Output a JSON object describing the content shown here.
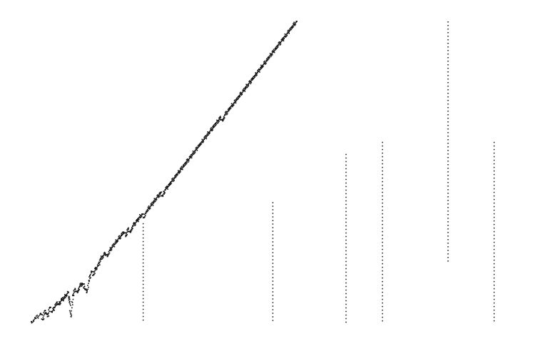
{
  "chart_data": {
    "type": "scatter",
    "title": "",
    "xlabel": "",
    "ylabel": "",
    "grid": false,
    "legend": "none",
    "axes_visible": false,
    "xlim": [
      0,
      100
    ],
    "ylim": [
      0,
      100
    ],
    "marker_color": "#111111",
    "series": [
      {
        "values": [
          [
            0,
            0.3
          ],
          [
            1,
            1.5
          ],
          [
            2,
            3
          ],
          [
            2.5,
            1
          ],
          [
            3,
            4
          ],
          [
            3.5,
            2
          ],
          [
            4,
            5
          ],
          [
            4.5,
            3.5
          ],
          [
            5,
            5
          ],
          [
            5.5,
            6.5
          ],
          [
            6,
            6
          ],
          [
            6.5,
            7.5
          ],
          [
            7,
            8
          ],
          [
            7.5,
            9
          ],
          [
            8,
            10
          ],
          [
            8.3,
            7
          ],
          [
            8.6,
            2
          ],
          [
            9,
            9
          ],
          [
            9.5,
            11
          ],
          [
            10,
            10
          ],
          [
            10.5,
            12
          ],
          [
            11,
            13
          ],
          [
            11.5,
            12
          ],
          [
            12,
            10
          ],
          [
            12.5,
            14
          ],
          [
            13,
            17
          ],
          [
            13.5,
            16
          ],
          [
            14,
            18
          ],
          [
            14.5,
            19
          ],
          [
            15,
            21
          ],
          [
            15.5,
            22
          ],
          [
            16,
            23
          ],
          [
            16.5,
            22
          ],
          [
            17,
            24
          ],
          [
            17.5,
            25
          ],
          [
            18,
            26
          ],
          [
            18.5,
            27
          ],
          [
            19,
            28
          ],
          [
            19.5,
            29
          ],
          [
            20,
            30
          ],
          [
            20.5,
            29
          ],
          [
            21,
            31
          ],
          [
            21.5,
            30
          ],
          [
            22,
            32
          ],
          [
            22.5,
            33
          ],
          [
            23,
            34
          ],
          [
            23.5,
            35
          ],
          [
            24,
            36
          ],
          [
            24.5,
            35
          ],
          [
            25,
            37
          ],
          [
            25.5,
            38
          ],
          [
            26,
            39
          ],
          [
            26.5,
            40
          ],
          [
            27,
            41
          ],
          [
            27.5,
            42
          ],
          [
            28,
            43
          ],
          [
            28.5,
            42
          ],
          [
            29,
            44
          ],
          [
            29.5,
            45
          ],
          [
            30,
            46
          ],
          [
            30.5,
            47
          ],
          [
            31,
            48
          ],
          [
            31.5,
            49
          ],
          [
            32,
            50
          ],
          [
            32.5,
            51
          ],
          [
            33,
            52
          ],
          [
            33.5,
            53
          ],
          [
            34,
            54
          ],
          [
            34.5,
            55
          ],
          [
            35,
            56
          ],
          [
            35.5,
            57
          ],
          [
            36,
            58
          ],
          [
            36.5,
            59
          ],
          [
            37,
            60
          ],
          [
            37.5,
            61
          ],
          [
            38,
            62
          ],
          [
            38.5,
            63
          ],
          [
            39,
            64
          ],
          [
            39.5,
            65
          ],
          [
            40,
            66
          ],
          [
            40.5,
            67
          ],
          [
            41,
            68
          ],
          [
            41.5,
            67
          ],
          [
            42,
            69
          ],
          [
            42.5,
            70
          ],
          [
            43,
            71
          ],
          [
            43.5,
            72
          ],
          [
            44,
            73
          ],
          [
            44.5,
            74
          ],
          [
            45,
            75
          ],
          [
            45.5,
            76
          ],
          [
            46,
            77
          ],
          [
            46.5,
            78
          ],
          [
            47,
            79
          ],
          [
            47.5,
            80
          ],
          [
            48,
            81
          ],
          [
            48.5,
            82
          ],
          [
            49,
            83
          ],
          [
            49.5,
            84
          ],
          [
            50,
            85
          ],
          [
            50.5,
            86
          ],
          [
            51,
            87
          ],
          [
            51.5,
            88
          ],
          [
            52,
            89
          ],
          [
            52.5,
            90
          ],
          [
            53,
            91
          ],
          [
            53.5,
            92
          ],
          [
            54,
            93
          ],
          [
            54.5,
            94
          ],
          [
            55,
            95
          ],
          [
            55.5,
            96
          ],
          [
            56,
            97
          ],
          [
            56.5,
            98
          ],
          [
            57,
            99
          ],
          [
            57.5,
            100
          ]
        ]
      }
    ]
  }
}
